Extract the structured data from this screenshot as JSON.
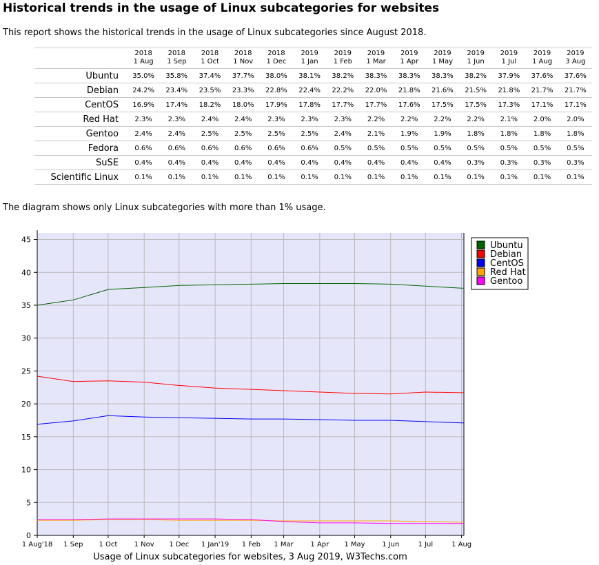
{
  "page": {
    "title": "Historical trends in the usage of Linux subcategories for websites",
    "intro": "This report shows the historical trends in the usage of Linux subcategories since August 2018.",
    "diagram_note": "The diagram shows only Linux subcategories with more than 1% usage."
  },
  "table": {
    "columns": [
      {
        "year": "2018",
        "date": "1 Aug"
      },
      {
        "year": "2018",
        "date": "1 Sep"
      },
      {
        "year": "2018",
        "date": "1 Oct"
      },
      {
        "year": "2018",
        "date": "1 Nov"
      },
      {
        "year": "2018",
        "date": "1 Dec"
      },
      {
        "year": "2019",
        "date": "1 Jan"
      },
      {
        "year": "2019",
        "date": "1 Feb"
      },
      {
        "year": "2019",
        "date": "1 Mar"
      },
      {
        "year": "2019",
        "date": "1 Apr"
      },
      {
        "year": "2019",
        "date": "1 May"
      },
      {
        "year": "2019",
        "date": "1 Jun"
      },
      {
        "year": "2019",
        "date": "1 Jul"
      },
      {
        "year": "2019",
        "date": "1 Aug"
      },
      {
        "year": "2019",
        "date": "3 Aug"
      }
    ],
    "rows": [
      {
        "label": "Ubuntu",
        "values": [
          "35.0%",
          "35.8%",
          "37.4%",
          "37.7%",
          "38.0%",
          "38.1%",
          "38.2%",
          "38.3%",
          "38.3%",
          "38.3%",
          "38.2%",
          "37.9%",
          "37.6%",
          "37.6%"
        ]
      },
      {
        "label": "Debian",
        "values": [
          "24.2%",
          "23.4%",
          "23.5%",
          "23.3%",
          "22.8%",
          "22.4%",
          "22.2%",
          "22.0%",
          "21.8%",
          "21.6%",
          "21.5%",
          "21.8%",
          "21.7%",
          "21.7%"
        ]
      },
      {
        "label": "CentOS",
        "values": [
          "16.9%",
          "17.4%",
          "18.2%",
          "18.0%",
          "17.9%",
          "17.8%",
          "17.7%",
          "17.7%",
          "17.6%",
          "17.5%",
          "17.5%",
          "17.3%",
          "17.1%",
          "17.1%"
        ]
      },
      {
        "label": "Red Hat",
        "values": [
          "2.3%",
          "2.3%",
          "2.4%",
          "2.4%",
          "2.3%",
          "2.3%",
          "2.3%",
          "2.2%",
          "2.2%",
          "2.2%",
          "2.2%",
          "2.1%",
          "2.0%",
          "2.0%"
        ]
      },
      {
        "label": "Gentoo",
        "values": [
          "2.4%",
          "2.4%",
          "2.5%",
          "2.5%",
          "2.5%",
          "2.5%",
          "2.4%",
          "2.1%",
          "1.9%",
          "1.9%",
          "1.8%",
          "1.8%",
          "1.8%",
          "1.8%"
        ]
      },
      {
        "label": "Fedora",
        "values": [
          "0.6%",
          "0.6%",
          "0.6%",
          "0.6%",
          "0.6%",
          "0.6%",
          "0.5%",
          "0.5%",
          "0.5%",
          "0.5%",
          "0.5%",
          "0.5%",
          "0.5%",
          "0.5%"
        ]
      },
      {
        "label": "SuSE",
        "values": [
          "0.4%",
          "0.4%",
          "0.4%",
          "0.4%",
          "0.4%",
          "0.4%",
          "0.4%",
          "0.4%",
          "0.4%",
          "0.4%",
          "0.3%",
          "0.3%",
          "0.3%",
          "0.3%"
        ]
      },
      {
        "label": "Scientific Linux",
        "values": [
          "0.1%",
          "0.1%",
          "0.1%",
          "0.1%",
          "0.1%",
          "0.1%",
          "0.1%",
          "0.1%",
          "0.1%",
          "0.1%",
          "0.1%",
          "0.1%",
          "0.1%",
          "0.1%"
        ]
      }
    ]
  },
  "chart_data": {
    "type": "line",
    "title": "Usage of Linux subcategories for websites, 3 Aug 2019, W3Techs.com",
    "xlabel": "",
    "ylabel": "",
    "x": [
      "2018-08-01",
      "2018-09-01",
      "2018-10-01",
      "2018-11-01",
      "2018-12-01",
      "2019-01-01",
      "2019-02-01",
      "2019-03-01",
      "2019-04-01",
      "2019-05-01",
      "2019-06-01",
      "2019-07-01",
      "2019-08-01",
      "2019-08-03"
    ],
    "x_tick_labels": [
      "1 Aug'18",
      "1 Sep",
      "1 Oct",
      "1 Nov",
      "1 Dec",
      "1 Jan'19",
      "1 Feb",
      "1 Mar",
      "1 Apr",
      "1 May",
      "1 Jun",
      "1 Jul",
      "1 Aug"
    ],
    "ylim": [
      0,
      46
    ],
    "y_ticks": [
      0,
      5,
      10,
      15,
      20,
      25,
      30,
      35,
      40,
      45
    ],
    "grid": true,
    "legend_position": "top-right",
    "background_color": "#e6e6fa",
    "series": [
      {
        "name": "Ubuntu",
        "color": "#006400",
        "values": [
          35.0,
          35.8,
          37.4,
          37.7,
          38.0,
          38.1,
          38.2,
          38.3,
          38.3,
          38.3,
          38.2,
          37.9,
          37.6,
          37.6
        ]
      },
      {
        "name": "Debian",
        "color": "#ff0000",
        "values": [
          24.2,
          23.4,
          23.5,
          23.3,
          22.8,
          22.4,
          22.2,
          22.0,
          21.8,
          21.6,
          21.5,
          21.8,
          21.7,
          21.7
        ]
      },
      {
        "name": "CentOS",
        "color": "#0000ff",
        "values": [
          16.9,
          17.4,
          18.2,
          18.0,
          17.9,
          17.8,
          17.7,
          17.7,
          17.6,
          17.5,
          17.5,
          17.3,
          17.1,
          17.1
        ]
      },
      {
        "name": "Red Hat",
        "color": "#ffa500",
        "values": [
          2.3,
          2.3,
          2.4,
          2.4,
          2.3,
          2.3,
          2.3,
          2.2,
          2.2,
          2.2,
          2.2,
          2.1,
          2.0,
          2.0
        ]
      },
      {
        "name": "Gentoo",
        "color": "#ff00ff",
        "values": [
          2.4,
          2.4,
          2.5,
          2.5,
          2.5,
          2.5,
          2.4,
          2.1,
          1.9,
          1.9,
          1.8,
          1.8,
          1.8,
          1.8
        ]
      }
    ]
  }
}
